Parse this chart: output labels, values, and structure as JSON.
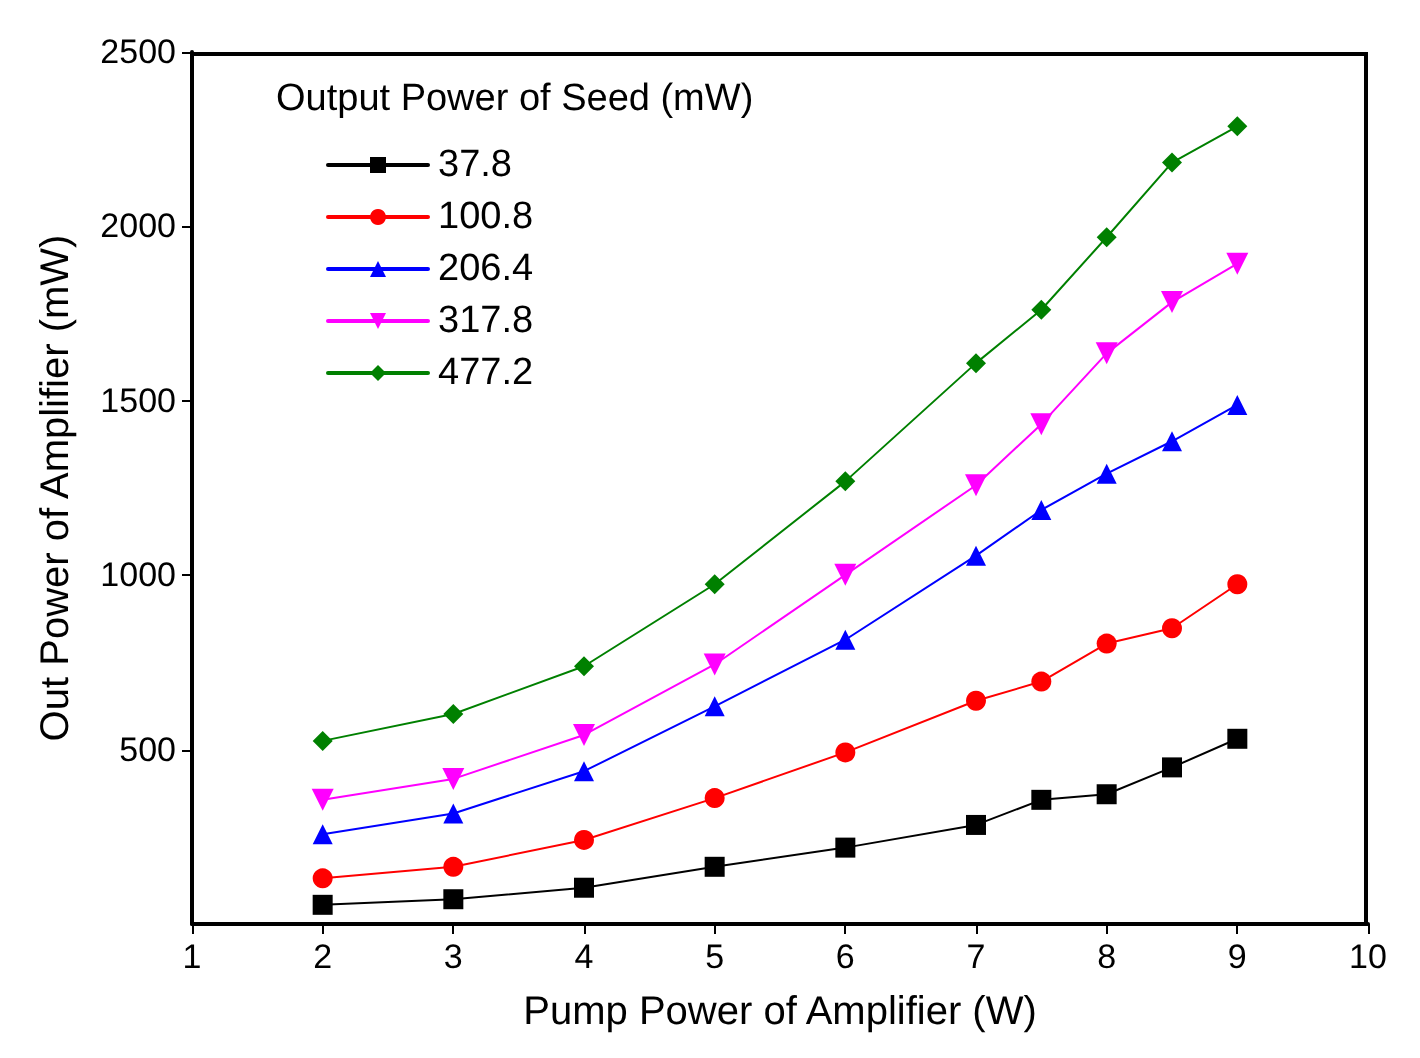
{
  "chart_data": {
    "type": "line",
    "xlabel": "Pump Power of Amplifier (W)",
    "ylabel": "Out Power of Amplifier (mW)",
    "legend_title": "Output Power of Seed (mW)",
    "x": [
      2,
      3,
      4,
      5,
      6,
      7,
      7.5,
      8,
      8.5,
      9
    ],
    "series": [
      {
        "name": "37.8",
        "color": "#000000",
        "marker": "square",
        "values": [
          55,
          71,
          104,
          164,
          219,
          284,
          356,
          372,
          449,
          531
        ]
      },
      {
        "name": "100.8",
        "color": "#ff0000",
        "marker": "circle",
        "values": [
          131,
          164,
          241,
          361,
          492,
          640,
          695,
          804,
          848,
          974
        ]
      },
      {
        "name": "206.4",
        "color": "#0000ff",
        "marker": "triangle",
        "values": [
          257,
          317,
          438,
          624,
          815,
          1056,
          1187,
          1291,
          1384,
          1488
        ]
      },
      {
        "name": "317.8",
        "color": "#ff00ff",
        "marker": "triangle-down",
        "values": [
          356,
          416,
          542,
          744,
          1001,
          1258,
          1433,
          1636,
          1783,
          1893
        ]
      },
      {
        "name": "477.2",
        "color": "#008000",
        "marker": "diamond",
        "values": [
          525,
          602,
          739,
          974,
          1269,
          1608,
          1761,
          1969,
          2183,
          2287
        ]
      }
    ],
    "xlim": [
      1,
      10
    ],
    "xticks": [
      1,
      2,
      3,
      4,
      5,
      6,
      7,
      8,
      9,
      10
    ],
    "ylim": [
      0,
      2500
    ],
    "yticks": [
      500,
      1000,
      1500,
      2000,
      2500
    ],
    "grid": false,
    "legend": "top left",
    "line_style": "solid"
  }
}
